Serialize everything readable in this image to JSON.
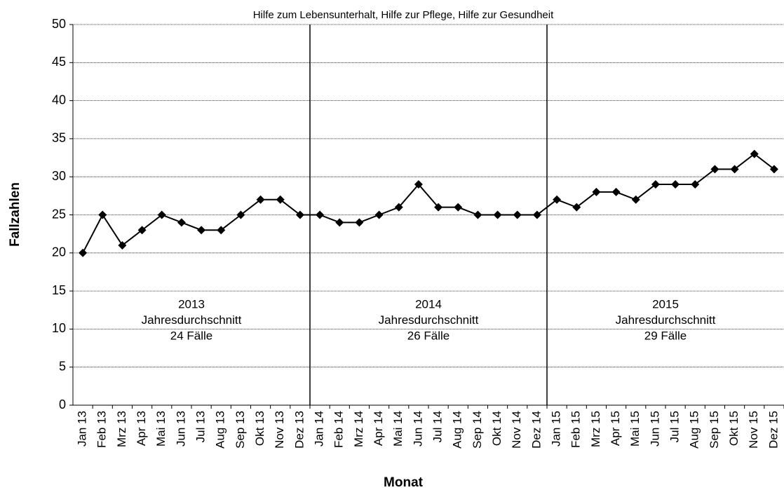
{
  "chart_data": {
    "type": "line",
    "title": "Hilfe zum Lebensunterhalt, Hilfe zur Pflege, Hilfe zur Gesundheit",
    "x_label": "Monat",
    "y_label": "Fallzahlen",
    "categories": [
      "Jan 13",
      "Feb 13",
      "Mrz 13",
      "Apr 13",
      "Mai 13",
      "Jun 13",
      "Jul 13",
      "Aug 13",
      "Sep 13",
      "Okt 13",
      "Nov 13",
      "Dez 13",
      "Jan 14",
      "Feb 14",
      "Mrz 14",
      "Apr 14",
      "Mai 14",
      "Jun 14",
      "Jul 14",
      "Aug 14",
      "Sep 14",
      "Okt 14",
      "Nov 14",
      "Dez 14",
      "Jan 15",
      "Feb 15",
      "Mrz 15",
      "Apr 15",
      "Mai 15",
      "Jun 15",
      "Jul 15",
      "Aug 15",
      "Sep 15",
      "Okt 15",
      "Nov 15",
      "Dez 15"
    ],
    "values": [
      20,
      25,
      21,
      23,
      25,
      24,
      23,
      23,
      25,
      27,
      27,
      25,
      25,
      24,
      24,
      25,
      26,
      29,
      26,
      26,
      25,
      25,
      25,
      25,
      27,
      26,
      28,
      28,
      27,
      29,
      29,
      29,
      31,
      31,
      33,
      31
    ],
    "color": "#000000",
    "ylim": [
      0,
      50
    ],
    "yticks": [
      0,
      5,
      10,
      15,
      20,
      25,
      30,
      35,
      40,
      45,
      50
    ],
    "grid": true,
    "annotations": [
      {
        "year": "2013",
        "label": "Jahresdurchschnitt",
        "average": "24 Fälle"
      },
      {
        "year": "2014",
        "label": "Jahresdurchschnitt",
        "average": "26 Fälle"
      },
      {
        "year": "2015",
        "label": "Jahresdurchschnitt",
        "average": "29 Fälle"
      }
    ]
  }
}
